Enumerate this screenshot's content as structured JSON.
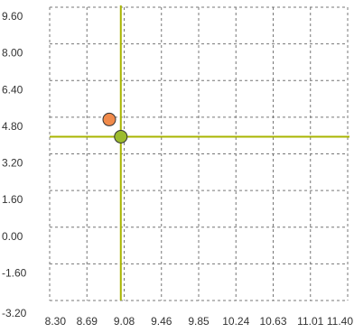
{
  "chart_data": {
    "type": "scatter",
    "title": "",
    "xlabel": "",
    "ylabel": "",
    "xlim": [
      8.3,
      11.4
    ],
    "ylim": [
      -3.2,
      9.6
    ],
    "grid": true,
    "x_ticks": [
      "8.30",
      "8.69",
      "9.08",
      "9.46",
      "9.85",
      "10.24",
      "10.63",
      "11.01",
      "11.40"
    ],
    "y_ticks": [
      "9.60",
      "8.00",
      "6.40",
      "4.80",
      "3.20",
      "1.60",
      "0.00",
      "-1.60",
      "-3.20"
    ],
    "points": [
      {
        "x": 8.92,
        "y": 4.7,
        "color": "#f08a4b"
      },
      {
        "x": 9.04,
        "y": 3.95,
        "color": "#9cbb2e"
      }
    ],
    "crosshair": {
      "x": 9.04,
      "y": 3.95,
      "color": "#a8b400"
    },
    "grid_color": "#777777"
  }
}
